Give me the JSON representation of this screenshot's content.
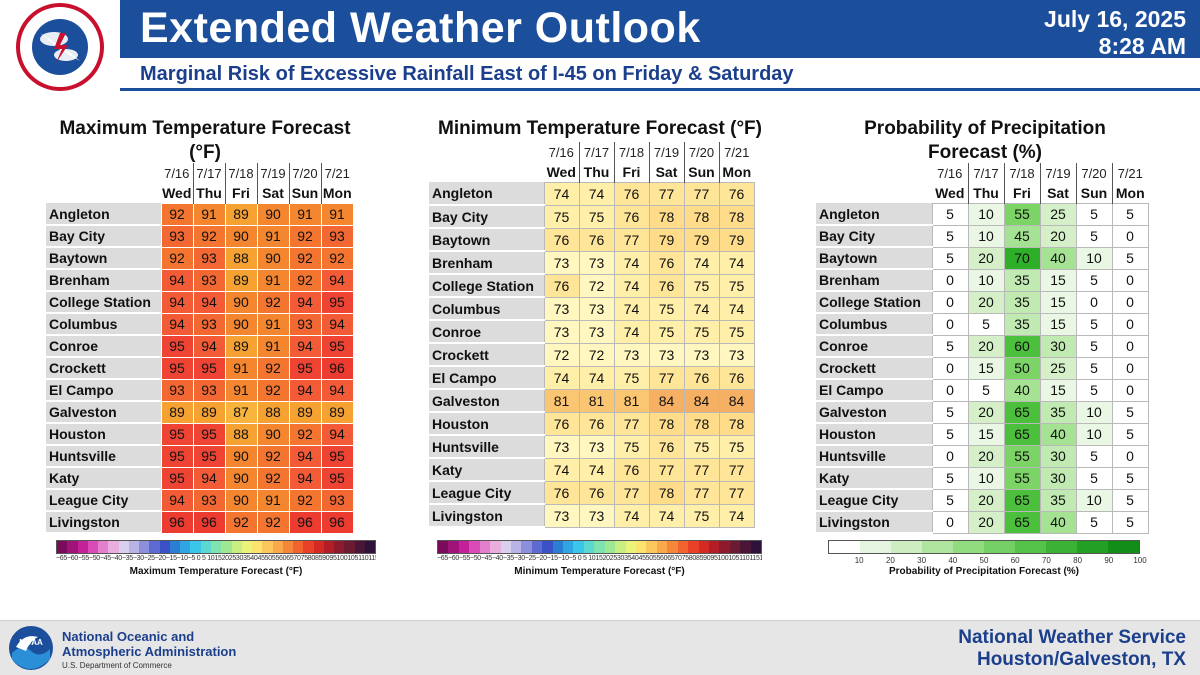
{
  "header": {
    "title": "Extended Weather Outlook",
    "subtitle": "Marginal Risk of Excessive Rainfall East of I-45 on Friday & Saturday",
    "date": "July 16, 2025",
    "time": "8:28 AM",
    "logo_text": "NATIONAL WEATHER SERVICE"
  },
  "dates": [
    "7/16",
    "7/17",
    "7/18",
    "7/19",
    "7/20",
    "7/21"
  ],
  "days": [
    "Wed",
    "Thu",
    "Fri",
    "Sat",
    "Sun",
    "Mon"
  ],
  "max_panel": {
    "title": "Maximum Temperature Forecast (°F)",
    "cities": [
      "Angleton",
      "Bay City",
      "Baytown",
      "Brenham",
      "College Station",
      "Columbus",
      "Conroe",
      "Crockett",
      "El Campo",
      "Galveston",
      "Houston",
      "Huntsville",
      "Katy",
      "League City",
      "Livingston"
    ],
    "values": [
      [
        92,
        91,
        89,
        90,
        91,
        91
      ],
      [
        93,
        92,
        90,
        91,
        92,
        93
      ],
      [
        92,
        93,
        88,
        90,
        92,
        92
      ],
      [
        94,
        93,
        89,
        91,
        92,
        94
      ],
      [
        94,
        94,
        90,
        92,
        94,
        95
      ],
      [
        94,
        93,
        90,
        91,
        93,
        94
      ],
      [
        95,
        94,
        89,
        91,
        94,
        95
      ],
      [
        95,
        95,
        91,
        92,
        95,
        96
      ],
      [
        93,
        93,
        91,
        92,
        94,
        94
      ],
      [
        89,
        89,
        87,
        88,
        89,
        89
      ],
      [
        95,
        95,
        88,
        90,
        92,
        94
      ],
      [
        95,
        95,
        90,
        92,
        94,
        95
      ],
      [
        95,
        94,
        90,
        92,
        94,
        95
      ],
      [
        94,
        93,
        90,
        91,
        92,
        93
      ],
      [
        96,
        96,
        92,
        92,
        96,
        96
      ]
    ],
    "colorbar_label": "Maximum Temperature Forecast (°F)",
    "colorbar_ticks": "−65−60−55−50−45−40−35−30−25−20−15−10−5 0 5 101520253035404550556065707580859095100105110115120"
  },
  "min_panel": {
    "title": "Minimum Temperature Forecast (°F)",
    "cities": [
      "Angleton",
      "Bay City",
      "Baytown",
      "Brenham",
      "College Station",
      "Columbus",
      "Conroe",
      "Crockett",
      "El Campo",
      "Galveston",
      "Houston",
      "Huntsville",
      "Katy",
      "League City",
      "Livingston"
    ],
    "values": [
      [
        74,
        74,
        76,
        77,
        77,
        76
      ],
      [
        75,
        75,
        76,
        78,
        78,
        78
      ],
      [
        76,
        76,
        77,
        79,
        79,
        79
      ],
      [
        73,
        73,
        74,
        76,
        74,
        74
      ],
      [
        76,
        72,
        74,
        76,
        75,
        75
      ],
      [
        73,
        73,
        74,
        75,
        74,
        74
      ],
      [
        73,
        73,
        74,
        75,
        75,
        75
      ],
      [
        72,
        72,
        73,
        73,
        73,
        73
      ],
      [
        74,
        74,
        75,
        77,
        76,
        76
      ],
      [
        81,
        81,
        81,
        84,
        84,
        84
      ],
      [
        76,
        76,
        77,
        78,
        78,
        78
      ],
      [
        73,
        73,
        75,
        76,
        75,
        75
      ],
      [
        74,
        74,
        76,
        77,
        77,
        77
      ],
      [
        76,
        76,
        77,
        78,
        77,
        77
      ],
      [
        73,
        73,
        74,
        74,
        75,
        74
      ]
    ],
    "colorbar_label": "Minimum Temperature Forecast (°F)",
    "colorbar_ticks": "−65−60−55−50−45−40−35−30−25−20−15−10−5 0 5 101520253035404550556065707580859095100105110115120"
  },
  "pop_panel": {
    "title": "Probability of Precipitation Forecast (%)",
    "cities": [
      "Angleton",
      "Bay City",
      "Baytown",
      "Brenham",
      "College Station",
      "Columbus",
      "Conroe",
      "Crockett",
      "El Campo",
      "Galveston",
      "Houston",
      "Huntsville",
      "Katy",
      "League City",
      "Livingston"
    ],
    "values": [
      [
        5,
        10,
        55,
        25,
        5,
        5
      ],
      [
        5,
        10,
        45,
        20,
        5,
        0
      ],
      [
        5,
        20,
        70,
        40,
        10,
        5
      ],
      [
        0,
        10,
        35,
        15,
        5,
        0
      ],
      [
        0,
        20,
        35,
        15,
        0,
        0
      ],
      [
        0,
        5,
        35,
        15,
        5,
        0
      ],
      [
        5,
        20,
        60,
        30,
        5,
        0
      ],
      [
        0,
        15,
        50,
        25,
        5,
        0
      ],
      [
        0,
        5,
        40,
        15,
        5,
        0
      ],
      [
        5,
        20,
        65,
        35,
        10,
        5
      ],
      [
        5,
        15,
        65,
        40,
        10,
        5
      ],
      [
        0,
        20,
        55,
        30,
        5,
        0
      ],
      [
        5,
        10,
        55,
        30,
        5,
        5
      ],
      [
        5,
        20,
        65,
        35,
        10,
        5
      ],
      [
        0,
        20,
        65,
        40,
        5,
        5
      ]
    ],
    "colorbar_label": "Probability of Precipitation Forecast (%)",
    "colorbar_ticks": [
      "10",
      "20",
      "30",
      "40",
      "50",
      "60",
      "70",
      "80",
      "90",
      "100"
    ]
  },
  "footer": {
    "noaa_line1": "National Oceanic and",
    "noaa_line2": "Atmospheric Administration",
    "noaa_dept": "U.S. Department of Commerce",
    "office_line1": "National Weather Service",
    "office_line2": "Houston/Galveston, TX",
    "noaa_logo_text": "NOAA"
  },
  "colors": {
    "header_blue": "#1b4f9c",
    "temp_scale": [
      "#f4a02a",
      "#f58a2c",
      "#f46f2f",
      "#f2543a",
      "#ec3b30"
    ],
    "min_scale": [
      "#fff4b8",
      "#ffeaa0",
      "#ffd98a",
      "#fcc675",
      "#f6b163"
    ],
    "pop_scale": [
      "#ffffff",
      "#e6f5e0",
      "#c3ecb5",
      "#92dd7f",
      "#5ec94a",
      "#2fb22a"
    ]
  }
}
